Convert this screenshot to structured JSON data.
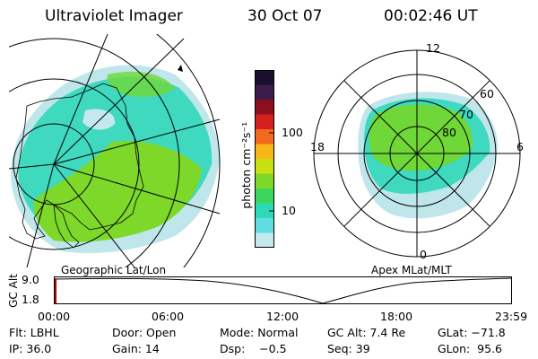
{
  "header": {
    "title": "Ultraviolet Imager",
    "date": "30 Oct 07",
    "time": "00:02:46 UT"
  },
  "colorbar": {
    "unit_label": "photon cm⁻²s⁻¹",
    "ticks": [
      "100",
      "10"
    ],
    "scale": "log",
    "colors_top_to_bottom": [
      "#1a0f2e",
      "#3a1d4a",
      "#8b0f1e",
      "#d4201e",
      "#f2691e",
      "#f7b518",
      "#c8e00e",
      "#7dd82a",
      "#3dd65c",
      "#2cd9b8",
      "#60dde0",
      "#c4e8ee"
    ]
  },
  "left_panel": {
    "label": "Geographic Lat/Lon"
  },
  "right_panel": {
    "label": "Apex MLat/MLT",
    "mlt_labels": {
      "top": "12",
      "left": "18",
      "right": "6",
      "bottom": "0"
    },
    "lat_labels": [
      "60",
      "70",
      "80"
    ]
  },
  "altitude_plot": {
    "ylabel": "GC Alt",
    "y_ticks": [
      "9.0",
      "1.8"
    ],
    "x_ticks": [
      "00:00",
      "06:00",
      "12:00",
      "18:00",
      "23:59"
    ]
  },
  "info": {
    "row1": {
      "flt": "Flt: LBHL",
      "door": "Door: Open",
      "mode": "Mode: Normal",
      "gc_alt": "GC Alt: 7.4 Re",
      "glat": "GLat: −71.8"
    },
    "row2": {
      "ip": "IP: 36.0",
      "gain": "Gain: 14",
      "dsp": "Dsp:    −0.5",
      "seq": "Seq: 39",
      "glon": "GLon:  95.6"
    }
  },
  "colors": {
    "aurora_green": "#6fd838",
    "aurora_cyan": "#3fd9c0",
    "aurora_pale": "#bfe6ea",
    "marker_red": "#b3000f"
  }
}
